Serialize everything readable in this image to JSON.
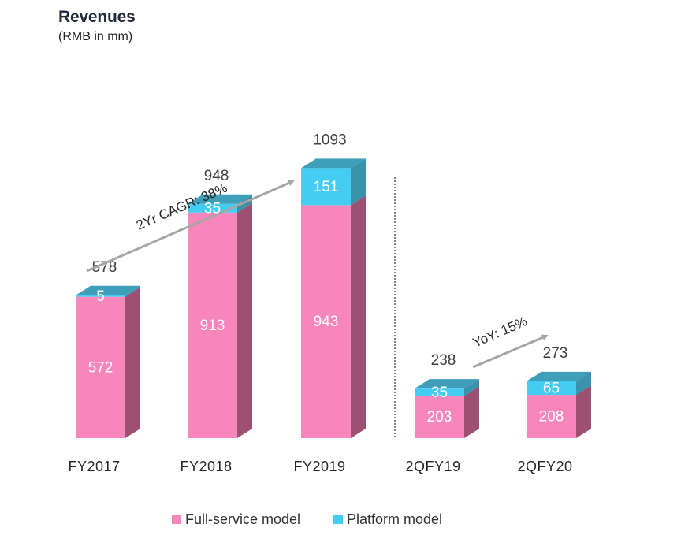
{
  "title": "Revenues",
  "subtitle": "(RMB in mm)",
  "chart_data": {
    "type": "bar",
    "stacked": true,
    "categories": [
      "FY2017",
      "FY2018",
      "FY2019",
      "2QFY19",
      "2QFY20"
    ],
    "series": [
      {
        "name": "Full-service model",
        "values": [
          572,
          913,
          943,
          203,
          208
        ],
        "color": "#f786bb"
      },
      {
        "name": "Platform model",
        "values": [
          5,
          35,
          151,
          35,
          65
        ],
        "color": "#45ccf2"
      }
    ],
    "totals": [
      578,
      948,
      1093,
      238,
      273
    ],
    "annotations": [
      {
        "text": "2Yr CAGR: 38%"
      },
      {
        "text": "YoY: 15%"
      }
    ],
    "legend": {
      "position": "bottom"
    },
    "grid": false,
    "ylim": [
      0,
      1100
    ]
  }
}
